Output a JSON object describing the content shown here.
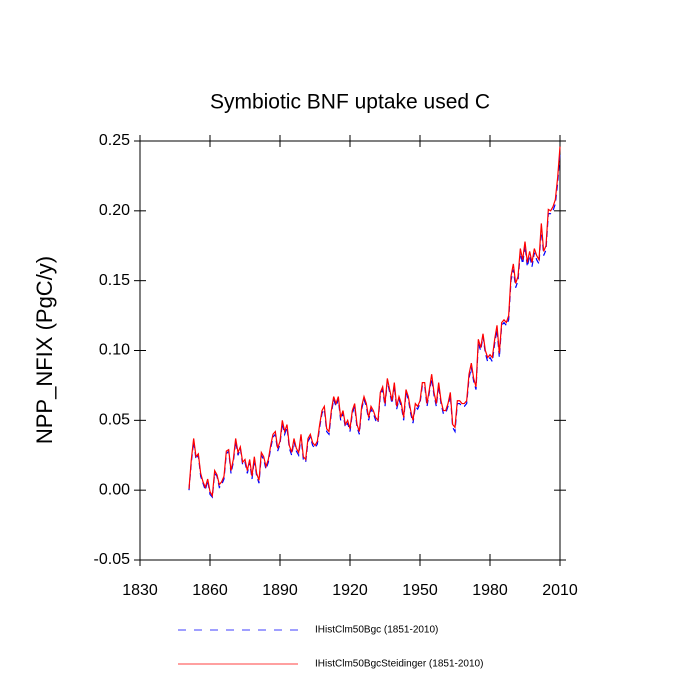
{
  "chart_data": {
    "type": "line",
    "title": "Symbiotic BNF uptake used C",
    "y_label": "NPP_NFIX  (PgC/y)",
    "x": [
      1851,
      1852,
      1853,
      1854,
      1855,
      1856,
      1857,
      1858,
      1859,
      1860,
      1861,
      1862,
      1863,
      1864,
      1865,
      1866,
      1867,
      1868,
      1869,
      1870,
      1871,
      1872,
      1873,
      1874,
      1875,
      1876,
      1877,
      1878,
      1879,
      1880,
      1881,
      1882,
      1883,
      1884,
      1885,
      1886,
      1887,
      1888,
      1889,
      1890,
      1891,
      1892,
      1893,
      1894,
      1895,
      1896,
      1897,
      1898,
      1899,
      1900,
      1901,
      1902,
      1903,
      1904,
      1905,
      1906,
      1907,
      1908,
      1909,
      1910,
      1911,
      1912,
      1913,
      1914,
      1915,
      1916,
      1917,
      1918,
      1919,
      1920,
      1921,
      1922,
      1923,
      1924,
      1925,
      1926,
      1927,
      1928,
      1929,
      1930,
      1931,
      1932,
      1933,
      1934,
      1935,
      1936,
      1937,
      1938,
      1939,
      1940,
      1941,
      1942,
      1943,
      1944,
      1945,
      1946,
      1947,
      1948,
      1949,
      1950,
      1951,
      1952,
      1953,
      1954,
      1955,
      1956,
      1957,
      1958,
      1959,
      1960,
      1961,
      1962,
      1963,
      1964,
      1965,
      1966,
      1967,
      1968,
      1969,
      1970,
      1971,
      1972,
      1973,
      1974,
      1975,
      1976,
      1977,
      1978,
      1979,
      1980,
      1981,
      1982,
      1983,
      1984,
      1985,
      1986,
      1987,
      1988,
      1989,
      1990,
      1991,
      1992,
      1993,
      1994,
      1995,
      1996,
      1997,
      1998,
      1999,
      2000,
      2001,
      2002,
      2003,
      2004,
      2005,
      2006,
      2007,
      2008,
      2009,
      2010
    ],
    "series": [
      {
        "name": "IHistClm50Bgc (1851-2010)",
        "color": "#0000ff",
        "dash": true,
        "values": [
          0.0,
          0.02,
          0.035,
          0.022,
          0.025,
          0.01,
          0.005,
          0.0,
          0.007,
          -0.003,
          -0.005,
          0.012,
          0.01,
          0.002,
          0.004,
          0.008,
          0.026,
          0.028,
          0.012,
          0.02,
          0.035,
          0.025,
          0.03,
          0.018,
          0.02,
          0.012,
          0.02,
          0.008,
          0.022,
          0.01,
          0.005,
          0.025,
          0.022,
          0.015,
          0.02,
          0.03,
          0.038,
          0.04,
          0.028,
          0.033,
          0.048,
          0.04,
          0.045,
          0.03,
          0.025,
          0.035,
          0.028,
          0.025,
          0.038,
          0.022,
          0.02,
          0.035,
          0.038,
          0.032,
          0.03,
          0.033,
          0.045,
          0.055,
          0.058,
          0.042,
          0.04,
          0.055,
          0.065,
          0.06,
          0.065,
          0.05,
          0.055,
          0.045,
          0.048,
          0.042,
          0.055,
          0.06,
          0.045,
          0.04,
          0.058,
          0.065,
          0.06,
          0.05,
          0.058,
          0.055,
          0.05,
          0.048,
          0.068,
          0.072,
          0.06,
          0.078,
          0.07,
          0.062,
          0.075,
          0.058,
          0.065,
          0.06,
          0.05,
          0.07,
          0.065,
          0.055,
          0.048,
          0.06,
          0.058,
          0.062,
          0.075,
          0.075,
          0.06,
          0.07,
          0.08,
          0.068,
          0.06,
          0.075,
          0.062,
          0.055,
          0.055,
          0.06,
          0.068,
          0.045,
          0.042,
          0.062,
          0.062,
          0.06,
          0.06,
          0.062,
          0.08,
          0.088,
          0.078,
          0.072,
          0.105,
          0.1,
          0.11,
          0.098,
          0.092,
          0.095,
          0.092,
          0.105,
          0.115,
          0.095,
          0.118,
          0.12,
          0.118,
          0.122,
          0.15,
          0.158,
          0.145,
          0.15,
          0.17,
          0.162,
          0.175,
          0.16,
          0.168,
          0.16,
          0.17,
          0.165,
          0.162,
          0.188,
          0.168,
          0.172,
          0.198,
          0.198,
          0.2,
          0.205,
          0.22,
          0.242
        ]
      },
      {
        "name": "IHistClm50BgcSteidinger (1851-2010)",
        "color": "#ff0000",
        "dash": false,
        "values": [
          0.001,
          0.022,
          0.037,
          0.024,
          0.026,
          0.012,
          0.006,
          0.002,
          0.008,
          -0.001,
          -0.004,
          0.014,
          0.011,
          0.004,
          0.006,
          0.01,
          0.028,
          0.029,
          0.014,
          0.022,
          0.037,
          0.027,
          0.031,
          0.02,
          0.022,
          0.014,
          0.022,
          0.01,
          0.024,
          0.012,
          0.007,
          0.027,
          0.024,
          0.017,
          0.022,
          0.032,
          0.04,
          0.042,
          0.03,
          0.035,
          0.05,
          0.042,
          0.047,
          0.032,
          0.027,
          0.037,
          0.03,
          0.027,
          0.04,
          0.024,
          0.022,
          0.037,
          0.04,
          0.034,
          0.032,
          0.035,
          0.047,
          0.057,
          0.06,
          0.044,
          0.042,
          0.057,
          0.067,
          0.062,
          0.067,
          0.052,
          0.057,
          0.047,
          0.05,
          0.044,
          0.057,
          0.062,
          0.047,
          0.042,
          0.06,
          0.067,
          0.062,
          0.052,
          0.06,
          0.057,
          0.052,
          0.05,
          0.07,
          0.074,
          0.062,
          0.08,
          0.072,
          0.064,
          0.077,
          0.06,
          0.067,
          0.062,
          0.052,
          0.072,
          0.067,
          0.057,
          0.05,
          0.062,
          0.06,
          0.064,
          0.077,
          0.077,
          0.062,
          0.072,
          0.083,
          0.07,
          0.062,
          0.077,
          0.064,
          0.057,
          0.057,
          0.062,
          0.07,
          0.047,
          0.045,
          0.064,
          0.064,
          0.062,
          0.062,
          0.064,
          0.083,
          0.091,
          0.08,
          0.074,
          0.108,
          0.102,
          0.112,
          0.1,
          0.095,
          0.097,
          0.095,
          0.108,
          0.118,
          0.098,
          0.12,
          0.122,
          0.12,
          0.125,
          0.153,
          0.162,
          0.148,
          0.153,
          0.173,
          0.165,
          0.178,
          0.163,
          0.171,
          0.163,
          0.173,
          0.168,
          0.165,
          0.191,
          0.171,
          0.175,
          0.201,
          0.2,
          0.203,
          0.208,
          0.224,
          0.246
        ]
      }
    ],
    "xlim": [
      1830,
      2010
    ],
    "xticks": [
      1830,
      1860,
      1890,
      1920,
      1950,
      1980,
      2010
    ],
    "ylim": [
      -0.05,
      0.25
    ],
    "yticks": [
      {
        "value": -0.05,
        "label": "-0.05"
      },
      {
        "value": 0,
        "label": "0.00"
      },
      {
        "value": 0.05,
        "label": "0.05"
      },
      {
        "value": 0.1,
        "label": "0.10"
      },
      {
        "value": 0.15,
        "label": "0.15"
      },
      {
        "value": 0.2,
        "label": "0.20"
      },
      {
        "value": 0.25,
        "label": "0.25"
      }
    ]
  }
}
